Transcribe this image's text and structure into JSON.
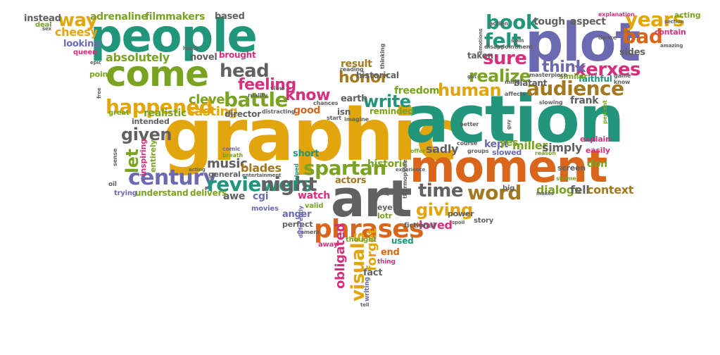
{
  "palette": {
    "orange": "#d9661a",
    "green": "#21967a",
    "purple": "#6b6ab1",
    "yellow": "#e3a50d",
    "magenta": "#d6307c",
    "olive": "#7aa321",
    "gray": "#616161",
    "brown": "#a4781f"
  },
  "words": [
    {
      "text": "graphic",
      "color": "yellow"
    },
    {
      "text": "action",
      "color": "green"
    },
    {
      "text": "people",
      "color": "green"
    },
    {
      "text": "plot",
      "color": "purple"
    },
    {
      "text": "moment",
      "color": "orange"
    },
    {
      "text": "art",
      "color": "gray"
    },
    {
      "text": "come",
      "color": "olive"
    },
    {
      "text": "phrases",
      "color": "orange"
    },
    {
      "text": "century",
      "color": "purple"
    },
    {
      "text": "reviewers",
      "color": "green"
    },
    {
      "text": "spartan",
      "color": "olive"
    },
    {
      "text": "audience",
      "color": "brown"
    },
    {
      "text": "happened",
      "color": "yellow"
    },
    {
      "text": "battle",
      "color": "olive"
    },
    {
      "text": "night",
      "color": "gray"
    },
    {
      "text": "time",
      "color": "gray"
    },
    {
      "text": "word",
      "color": "brown"
    },
    {
      "text": "giving",
      "color": "yellow"
    },
    {
      "text": "visuals",
      "color": "yellow"
    },
    {
      "text": "head",
      "color": "gray"
    },
    {
      "text": "book",
      "color": "green"
    },
    {
      "text": "felt",
      "color": "green"
    },
    {
      "text": "sure",
      "color": "magenta"
    },
    {
      "text": "realize",
      "color": "olive"
    },
    {
      "text": "xerxes",
      "color": "magenta"
    },
    {
      "text": "years",
      "color": "yellow"
    },
    {
      "text": "bad",
      "color": "orange"
    },
    {
      "text": "human",
      "color": "yellow"
    },
    {
      "text": "write",
      "color": "green"
    },
    {
      "text": "honor",
      "color": "brown"
    },
    {
      "text": "know",
      "color": "magenta"
    },
    {
      "text": "feeling",
      "color": "magenta"
    },
    {
      "text": "way",
      "color": "yellow"
    },
    {
      "text": "given",
      "color": "gray"
    },
    {
      "text": "let",
      "color": "olive"
    },
    {
      "text": "think",
      "color": "purple"
    },
    {
      "text": "music",
      "color": "gray"
    },
    {
      "text": "forget",
      "color": "yellow"
    },
    {
      "text": "obligated",
      "color": "magenta"
    },
    {
      "text": "loved",
      "color": "magenta"
    },
    {
      "text": "clever",
      "color": "olive"
    },
    {
      "text": "casting",
      "color": "yellow"
    },
    {
      "text": "realistic",
      "color": "olive"
    },
    {
      "text": "blades",
      "color": "brown"
    },
    {
      "text": "dialogs",
      "color": "olive"
    },
    {
      "text": "fell",
      "color": "gray"
    },
    {
      "text": "context",
      "color": "brown"
    },
    {
      "text": "freedom",
      "color": "olive"
    },
    {
      "text": "historic",
      "color": "olive"
    },
    {
      "text": "miller",
      "color": "olive"
    },
    {
      "text": "sadly",
      "color": "gray"
    },
    {
      "text": "simply",
      "color": "gray"
    },
    {
      "text": "frank",
      "color": "gray"
    },
    {
      "text": "kept",
      "color": "purple"
    },
    {
      "text": "yes",
      "color": "olive"
    },
    {
      "text": "cheesy",
      "color": "yellow"
    },
    {
      "text": "absolutely",
      "color": "olive"
    },
    {
      "text": "adrenaline",
      "color": "olive"
    },
    {
      "text": "filmmakers",
      "color": "olive"
    },
    {
      "text": "based",
      "color": "gray"
    },
    {
      "text": "instead",
      "color": "gray"
    },
    {
      "text": "deal",
      "color": "olive"
    },
    {
      "text": "looking",
      "color": "purple"
    },
    {
      "text": "novel",
      "color": "gray"
    },
    {
      "text": "brought",
      "color": "magenta"
    },
    {
      "text": "result",
      "color": "brown"
    },
    {
      "text": "earth",
      "color": "gray"
    },
    {
      "text": "historical",
      "color": "gray"
    },
    {
      "text": "tough",
      "color": "gray"
    },
    {
      "text": "aspect",
      "color": "gray"
    },
    {
      "text": "acting",
      "color": "olive"
    },
    {
      "text": "contain",
      "color": "magenta"
    },
    {
      "text": "sides",
      "color": "gray"
    },
    {
      "text": "faithful",
      "color": "green"
    },
    {
      "text": "similar",
      "color": "olive"
    },
    {
      "text": "taken",
      "color": "gray"
    },
    {
      "text": "blatant",
      "color": "gray"
    },
    {
      "text": "point",
      "color": "olive"
    },
    {
      "text": "queen",
      "color": "magenta"
    },
    {
      "text": "good",
      "color": "orange"
    },
    {
      "text": "reminded",
      "color": "olive"
    },
    {
      "text": "isn",
      "color": "gray"
    },
    {
      "text": "director",
      "color": "gray"
    },
    {
      "text": "intended",
      "color": "gray"
    },
    {
      "text": "great",
      "color": "olive"
    },
    {
      "text": "entirely",
      "color": "olive"
    },
    {
      "text": "inspiring",
      "color": "magenta"
    },
    {
      "text": "short",
      "color": "green"
    },
    {
      "text": "general",
      "color": "gray"
    },
    {
      "text": "watch",
      "color": "magenta"
    },
    {
      "text": "actors",
      "color": "brown"
    },
    {
      "text": "cgi",
      "color": "purple"
    },
    {
      "text": "awe",
      "color": "gray"
    },
    {
      "text": "movies",
      "color": "purple"
    },
    {
      "text": "understand",
      "color": "olive"
    },
    {
      "text": "delivers",
      "color": "olive"
    },
    {
      "text": "trying",
      "color": "purple"
    },
    {
      "text": "anger",
      "color": "purple"
    },
    {
      "text": "perfect",
      "color": "gray"
    },
    {
      "text": "lotr",
      "color": "olive"
    },
    {
      "text": "eye",
      "color": "gray"
    },
    {
      "text": "used",
      "color": "green"
    },
    {
      "text": "end",
      "color": "orange"
    },
    {
      "text": "fact",
      "color": "gray"
    },
    {
      "text": "away",
      "color": "magenta"
    },
    {
      "text": "thought",
      "color": "olive"
    },
    {
      "text": "explain",
      "color": "magenta"
    },
    {
      "text": "easily",
      "color": "magenta"
    },
    {
      "text": "don",
      "color": "olive"
    },
    {
      "text": "screen",
      "color": "gray"
    },
    {
      "text": "slowed",
      "color": "purple"
    },
    {
      "text": "power",
      "color": "gray"
    },
    {
      "text": "story",
      "color": "gray"
    },
    {
      "text": "big",
      "color": "gray"
    },
    {
      "text": "fictional",
      "color": "gray"
    },
    {
      "text": "valid",
      "color": "olive"
    },
    {
      "text": "camera",
      "color": "gray"
    },
    {
      "text": "writing",
      "color": "purple"
    },
    {
      "text": "thing",
      "color": "magenta"
    },
    {
      "text": "explanation",
      "color": "magenta"
    },
    {
      "text": "dance",
      "color": "gray"
    },
    {
      "text": "action",
      "color": "gray"
    },
    {
      "text": "disappointment",
      "color": "gray"
    },
    {
      "text": "spin",
      "color": "gray"
    },
    {
      "text": "thinking",
      "color": "gray"
    },
    {
      "text": "reading",
      "color": "gray"
    },
    {
      "text": "reality",
      "color": "gray"
    },
    {
      "text": "comic",
      "color": "purple"
    },
    {
      "text": "breath",
      "color": "olive"
    },
    {
      "text": "oil",
      "color": "gray"
    },
    {
      "text": "sense",
      "color": "gray"
    },
    {
      "text": "imagine",
      "color": "gray"
    },
    {
      "text": "chances",
      "color": "gray"
    },
    {
      "text": "start",
      "color": "gray"
    },
    {
      "text": "better",
      "color": "gray"
    },
    {
      "text": "offer",
      "color": "olive"
    },
    {
      "text": "reason",
      "color": "olive"
    },
    {
      "text": "course",
      "color": "gray"
    },
    {
      "text": "groups",
      "color": "gray"
    },
    {
      "text": "thermopylae",
      "color": "gray"
    },
    {
      "text": "experience",
      "color": "gray"
    },
    {
      "text": "entertainment",
      "color": "gray"
    },
    {
      "text": "distracting",
      "color": "gray"
    },
    {
      "text": "view",
      "color": "gray"
    },
    {
      "text": "masterpiece",
      "color": "gray"
    },
    {
      "text": "mind",
      "color": "gray"
    },
    {
      "text": "affects",
      "color": "gray"
    },
    {
      "text": "slowing",
      "color": "gray"
    },
    {
      "text": "game",
      "color": "gray"
    },
    {
      "text": "know",
      "color": "gray"
    },
    {
      "text": "percent",
      "color": "olive"
    },
    {
      "text": "shame",
      "color": "olive"
    },
    {
      "text": "tell",
      "color": "gray"
    },
    {
      "text": "acting",
      "color": "gray"
    },
    {
      "text": "spoil",
      "color": "gray"
    },
    {
      "text": "epic",
      "color": "gray"
    },
    {
      "text": "free",
      "color": "gray"
    },
    {
      "text": "hours",
      "color": "gray"
    },
    {
      "text": "differently",
      "color": "purple"
    },
    {
      "text": "helped",
      "color": "green"
    },
    {
      "text": "makes",
      "color": "gray"
    },
    {
      "text": "emotions",
      "color": "gray"
    },
    {
      "text": "gut",
      "color": "gray"
    },
    {
      "text": "guy",
      "color": "gray"
    },
    {
      "text": "sex",
      "color": "gray"
    },
    {
      "text": "section",
      "color": "gray"
    },
    {
      "text": "amazing",
      "color": "gray"
    }
  ]
}
